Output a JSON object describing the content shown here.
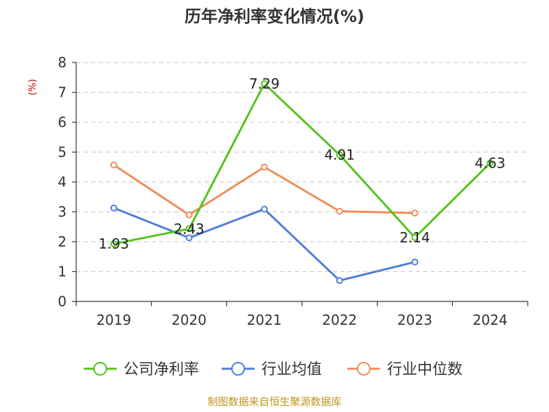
{
  "chart_data": {
    "type": "line",
    "title": "历年净利率变化情况(%)",
    "ylabel": "(%)",
    "xlabel": "",
    "categories": [
      "2019",
      "2020",
      "2021",
      "2022",
      "2023",
      "2024"
    ],
    "ylim": [
      0,
      8
    ],
    "yticks": [
      "0",
      "1",
      "2",
      "3",
      "4",
      "5",
      "6",
      "7",
      "8"
    ],
    "grid": true,
    "legend_position": "bottom",
    "series": [
      {
        "name": "公司净利率",
        "color": "#52c41a",
        "values": [
          1.93,
          2.43,
          7.29,
          4.91,
          2.14,
          4.63
        ],
        "labels": [
          "1.93",
          "2.43",
          "7.29",
          "4.91",
          "2.14",
          "4.63"
        ]
      },
      {
        "name": "行业均值",
        "color": "#4e7fd9",
        "values": [
          3.13,
          2.13,
          3.09,
          0.7,
          1.32,
          null
        ]
      },
      {
        "name": "行业中位数",
        "color": "#f28c5a",
        "values": [
          4.57,
          2.9,
          4.5,
          3.02,
          2.96,
          null
        ]
      }
    ],
    "source": "制图数据来自恒生聚源数据库",
    "colors": {
      "unit": "#cc0000",
      "source": "#c0961a",
      "grid": "#cccccc",
      "axis": "#333333"
    }
  }
}
